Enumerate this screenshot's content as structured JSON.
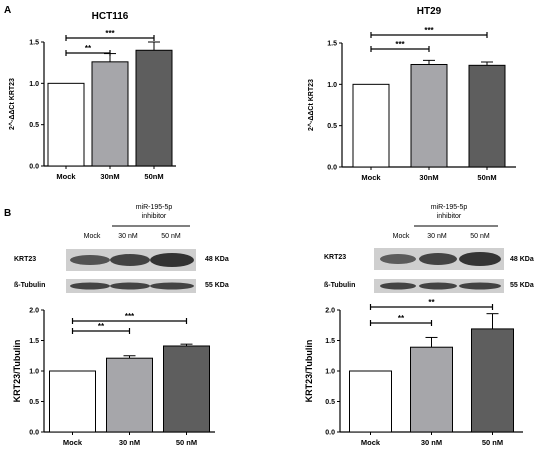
{
  "panel_labels": {
    "a": "A",
    "b": "B"
  },
  "colors": {
    "mock": "#ffffff",
    "c30": "#a6a6aa",
    "c50": "#5e5e5e",
    "axis": "#000000",
    "blot_band": "#2a2a2a",
    "blot_bg": "#cfcfcf"
  },
  "blots": {
    "left": {
      "treatment": "miR-195-5p",
      "treatment_sub": "inhibitor",
      "lanes": [
        "Mock",
        "30 nM",
        "50 nM"
      ],
      "rows": [
        {
          "label": "KRT23",
          "size": "48 KDa"
        },
        {
          "label": "ß-Tubulin",
          "size": "55 KDa"
        }
      ]
    },
    "right": {
      "treatment": "miR-195-5p",
      "treatment_sub": "inhibitor",
      "lanes": [
        "Mock",
        "30 nM",
        "50 nM"
      ],
      "rows": [
        {
          "label": "KRT23",
          "size": "48 KDa"
        },
        {
          "label": "ß-Tubulin",
          "size": "55 KDa"
        }
      ]
    }
  },
  "chart_data": [
    {
      "type": "bar",
      "title": "HCT116",
      "ylabel": "2^-ΔΔCt KRT23",
      "categories": [
        "Mock",
        "30nM",
        "50nM"
      ],
      "values": [
        1.0,
        1.26,
        1.4
      ],
      "errors": [
        0,
        0.1,
        0.1
      ],
      "ylim": [
        0,
        1.5
      ],
      "yticks": [
        "0.0",
        "0.5",
        "1.0",
        "1.5"
      ],
      "significance": [
        {
          "from": 0,
          "to": 1,
          "label": "**"
        },
        {
          "from": 0,
          "to": 2,
          "label": "***"
        }
      ]
    },
    {
      "type": "bar",
      "title": "HT29",
      "ylabel": "2^-ΔΔCt KRT23",
      "categories": [
        "Mock",
        "30nM",
        "50nM"
      ],
      "values": [
        1.0,
        1.24,
        1.23
      ],
      "errors": [
        0,
        0.05,
        0.04
      ],
      "ylim": [
        0,
        1.5
      ],
      "yticks": [
        "0.0",
        "0.5",
        "1.0",
        "1.5"
      ],
      "significance": [
        {
          "from": 0,
          "to": 1,
          "label": "***"
        },
        {
          "from": 0,
          "to": 2,
          "label": "***"
        }
      ]
    },
    {
      "type": "bar",
      "title": "",
      "ylabel": "KRT23/Tubulin",
      "categories": [
        "Mock",
        "30 nM",
        "50 nM"
      ],
      "values": [
        1.0,
        1.21,
        1.41
      ],
      "errors": [
        0,
        0.04,
        0.03
      ],
      "ylim": [
        0,
        2.0
      ],
      "yticks": [
        "0.0",
        "0.5",
        "1.0",
        "1.5",
        "2.0"
      ],
      "significance": [
        {
          "from": 0,
          "to": 1,
          "label": "**"
        },
        {
          "from": 0,
          "to": 2,
          "label": "***"
        }
      ]
    },
    {
      "type": "bar",
      "title": "",
      "ylabel": "KRT23/Tubulin",
      "categories": [
        "Mock",
        "30 nM",
        "50 nM"
      ],
      "values": [
        1.0,
        1.39,
        1.69
      ],
      "errors": [
        0,
        0.16,
        0.25
      ],
      "ylim": [
        0,
        2.0
      ],
      "yticks": [
        "0.0",
        "0.5",
        "1.0",
        "1.5",
        "2.0"
      ],
      "significance": [
        {
          "from": 0,
          "to": 1,
          "label": "**"
        },
        {
          "from": 0,
          "to": 2,
          "label": "**"
        }
      ]
    }
  ]
}
